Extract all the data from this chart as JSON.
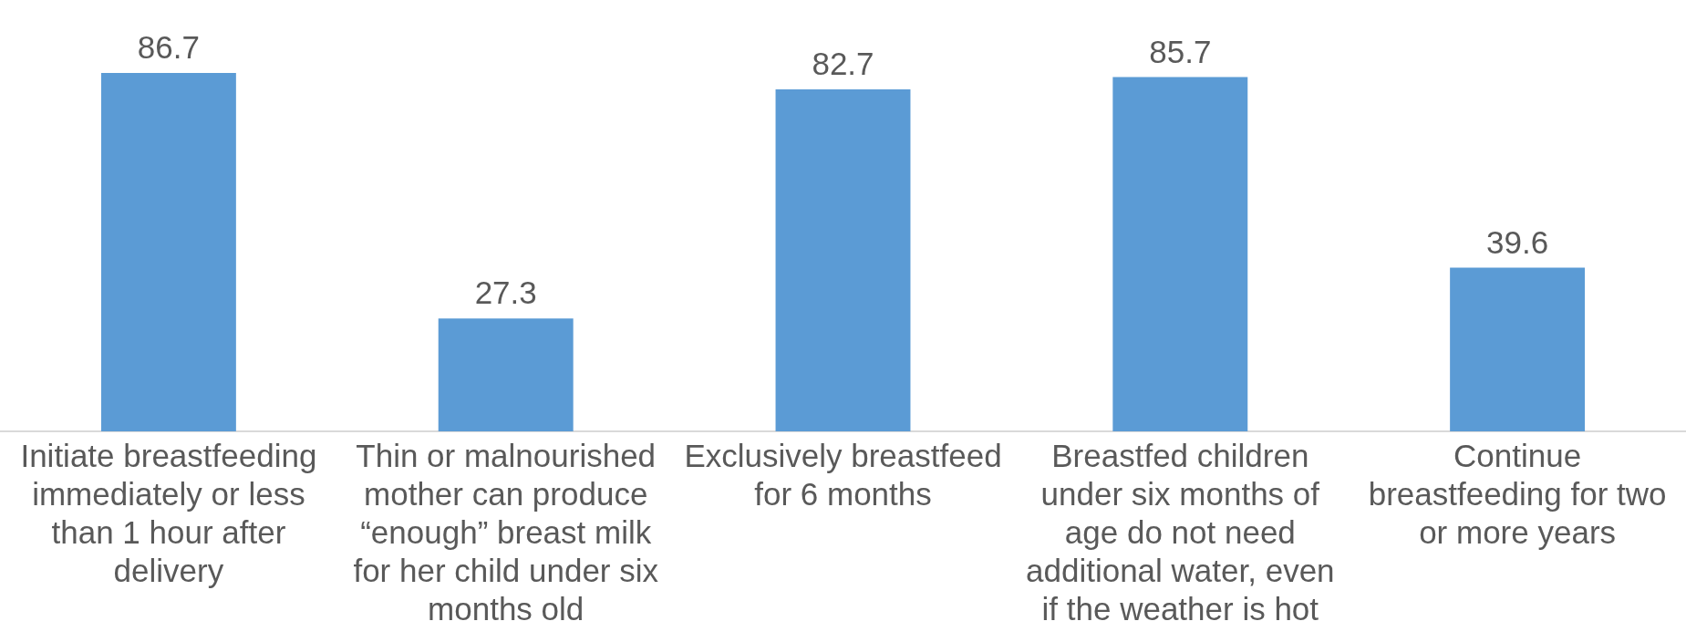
{
  "chart_data": {
    "type": "bar",
    "categories": [
      "Initiate breastfeeding immediately or less than 1 hour after delivery",
      "Thin or malnourished mother can produce “enough” breast milk for her child under six months old",
      "Exclusively breastfeed for 6 months",
      "Breastfed children under six months of age do not need additional water, even if the weather is hot",
      "Continue breastfeeding for two or more years"
    ],
    "values": [
      86.7,
      27.3,
      82.7,
      85.7,
      39.6
    ],
    "color": "#5b9bd5",
    "data_labels": true,
    "grid": false,
    "legend": false
  }
}
